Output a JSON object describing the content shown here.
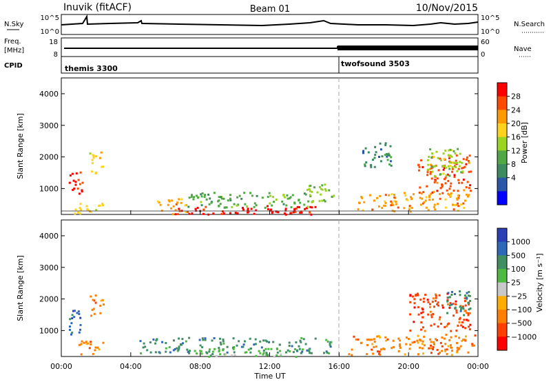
{
  "header": {
    "station": "Inuvik (fitACF)",
    "beam": "Beam 01",
    "date": "10/Nov/2015"
  },
  "panels": {
    "nsky": {
      "left_label": "N.Sky",
      "right_label": "N.Search",
      "ticks_left": [
        "10^5",
        "10^0"
      ],
      "ticks_right": [
        "10^5",
        "10^0"
      ]
    },
    "freq": {
      "left_label": "Freq.",
      "left_unit": "[MHz]",
      "right_label": "Nave",
      "ticks_left": [
        "18",
        "8"
      ],
      "ticks_right": [
        "60",
        "0"
      ]
    },
    "cpid": {
      "label": "CPID",
      "programs": [
        {
          "name": "themis 3300",
          "start_hour": 0
        },
        {
          "name": "twofsound 3503",
          "start_hour": 16
        }
      ]
    }
  },
  "colorbars": {
    "power": {
      "label": "Power [dB]",
      "ticks": [
        "28",
        "24",
        "20",
        "16",
        "12",
        "8",
        "4"
      ],
      "colors": [
        "#ff0000",
        "#ff4a00",
        "#ff9a00",
        "#ffd21c",
        "#9ad41e",
        "#4fa843",
        "#3c8a60",
        "#2a56a8",
        "#0000ff"
      ]
    },
    "velocity": {
      "label": "Velocity [m s⁻¹]",
      "ticks": [
        "1000",
        "500",
        "100",
        "25",
        "−25",
        "−100",
        "−500",
        "−1000"
      ],
      "colors": [
        "#2a3fb5",
        "#2e68b8",
        "#3f8f63",
        "#4fb840",
        "#c8c8c8",
        "#ffae00",
        "#ff8000",
        "#ff4000",
        "#ff0000"
      ]
    }
  },
  "chart_data": [
    {
      "type": "heatmap",
      "name": "power",
      "ylabel": "Slant Range [km]",
      "yticks": [
        1000,
        2000,
        3000,
        4000
      ],
      "ylim": [
        180,
        4500
      ],
      "xlim": [
        0,
        24
      ],
      "xticks": [
        "00:00",
        "04:00",
        "08:00",
        "12:00",
        "16:00",
        "20:00",
        "00:00"
      ],
      "xlabel": "",
      "regions": [
        {
          "x": [
            0.4,
            1.3
          ],
          "y": [
            850,
            1600
          ],
          "level": 0
        },
        {
          "x": [
            0.7,
            2.4
          ],
          "y": [
            200,
            600
          ],
          "level": 3
        },
        {
          "x": [
            1.6,
            2.4
          ],
          "y": [
            1500,
            2200
          ],
          "level": 3
        },
        {
          "x": [
            5.5,
            7.2
          ],
          "y": [
            200,
            700
          ],
          "level": 2
        },
        {
          "x": [
            6.5,
            14.8
          ],
          "y": [
            200,
            450
          ],
          "level": 0
        },
        {
          "x": [
            7.0,
            14.5
          ],
          "y": [
            420,
            900
          ],
          "level": 5
        },
        {
          "x": [
            11.8,
            14.0
          ],
          "y": [
            200,
            480
          ],
          "level": 0
        },
        {
          "x": [
            14.0,
            15.8
          ],
          "y": [
            600,
            1200
          ],
          "level": 4
        },
        {
          "x": [
            17.0,
            23.5
          ],
          "y": [
            300,
            900
          ],
          "level": 2
        },
        {
          "x": [
            17.2,
            19.0
          ],
          "y": [
            1700,
            2500
          ],
          "level": 6
        },
        {
          "x": [
            20.5,
            23.6
          ],
          "y": [
            900,
            2100
          ],
          "level": 1
        },
        {
          "x": [
            21.0,
            23.3
          ],
          "y": [
            1400,
            2300
          ],
          "level": 4
        }
      ]
    },
    {
      "type": "heatmap",
      "name": "velocity",
      "ylabel": "Slant Range [km]",
      "yticks": [
        1000,
        2000,
        3000,
        4000
      ],
      "ylim": [
        180,
        4500
      ],
      "xlim": [
        0,
        24
      ],
      "xticks": [
        "00:00",
        "04:00",
        "08:00",
        "12:00",
        "16:00",
        "20:00",
        "00:00"
      ],
      "xlabel": "Time UT",
      "regions": [
        {
          "x": [
            0.4,
            1.3
          ],
          "y": [
            900,
            1700
          ],
          "level": 1
        },
        {
          "x": [
            0.8,
            2.4
          ],
          "y": [
            250,
            700
          ],
          "level": 6
        },
        {
          "x": [
            1.6,
            2.4
          ],
          "y": [
            1500,
            2200
          ],
          "level": 6
        },
        {
          "x": [
            4.5,
            15.5
          ],
          "y": [
            300,
            800
          ],
          "level": 2
        },
        {
          "x": [
            7.5,
            13.5
          ],
          "y": [
            200,
            450
          ],
          "level": 3
        },
        {
          "x": [
            16.5,
            23.8
          ],
          "y": [
            250,
            900
          ],
          "level": 6
        },
        {
          "x": [
            20.0,
            23.5
          ],
          "y": [
            1000,
            2200
          ],
          "level": 7
        },
        {
          "x": [
            22.0,
            23.6
          ],
          "y": [
            1500,
            2300
          ],
          "level": 2
        }
      ]
    }
  ]
}
